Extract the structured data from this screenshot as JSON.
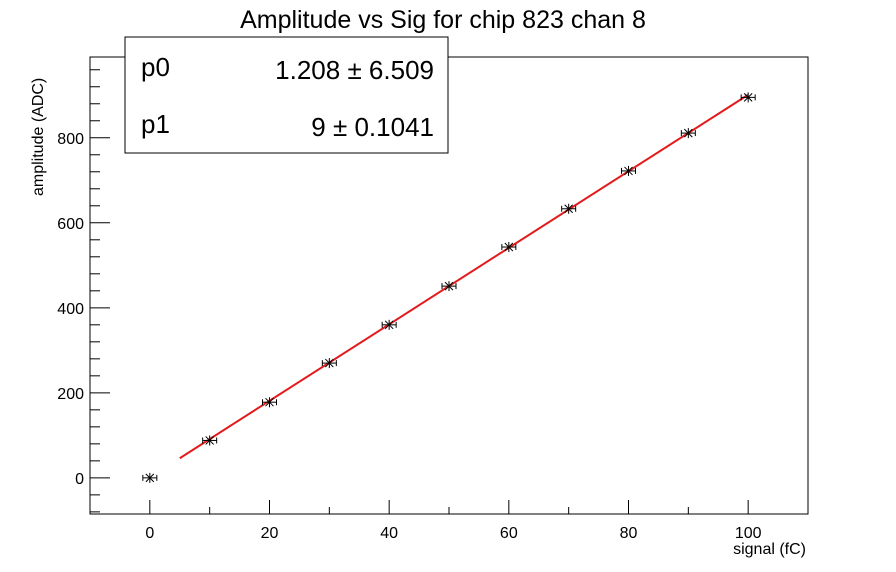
{
  "chart_data": {
    "type": "scatter",
    "title": "Amplitude vs Sig for chip 823 chan 8",
    "xlabel": "signal (fC)",
    "ylabel": "amplitude (ADC)",
    "xlim": [
      -10,
      110
    ],
    "ylim": [
      -85,
      990
    ],
    "x_ticks": [
      0,
      20,
      40,
      60,
      80,
      100
    ],
    "y_ticks": [
      0,
      200,
      400,
      600,
      800
    ],
    "grid": false,
    "series": [
      {
        "marker": "star",
        "color": "#000000",
        "x": [
          0,
          10,
          20,
          30,
          40,
          50,
          60,
          70,
          80,
          90,
          100
        ],
        "y": [
          0,
          88,
          178,
          270,
          360,
          451,
          543,
          633,
          722,
          811,
          895
        ]
      }
    ],
    "fit": {
      "color": "#e31a1c",
      "x_range": [
        5,
        100
      ],
      "params": [
        {
          "name": "p0",
          "value": "1.208",
          "error": "6.509"
        },
        {
          "name": "p1",
          "value": "9",
          "error": "0.1041"
        }
      ]
    }
  }
}
